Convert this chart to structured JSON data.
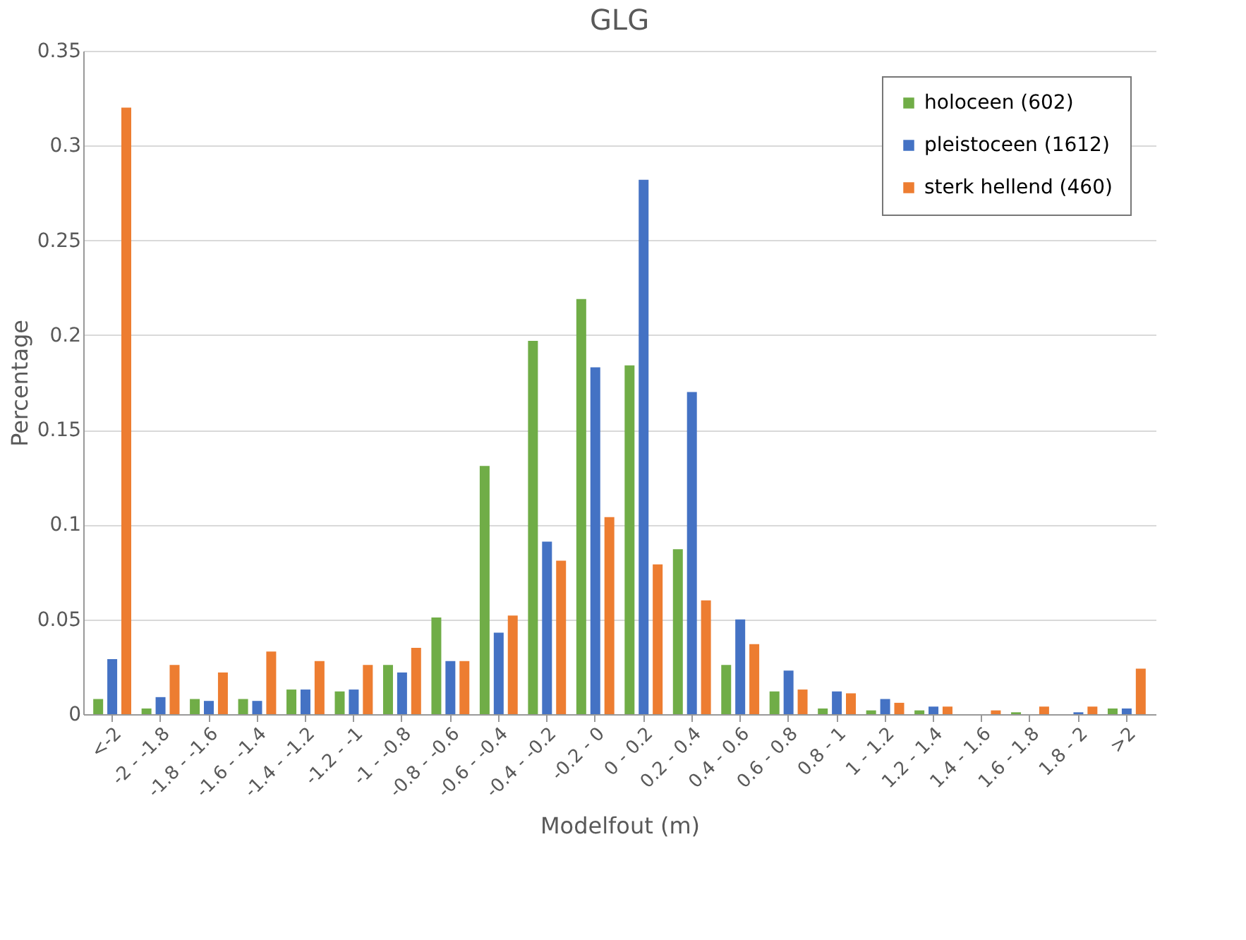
{
  "chart_data": {
    "type": "bar",
    "title": "GLG",
    "xlabel": "Modelfout (m)",
    "ylabel": "Percentage",
    "categories": [
      "<-2",
      "-2 - -1.8",
      "-1.8 - -1.6",
      "-1.6 - -1.4",
      "-1.4 - -1.2",
      "-1.2 - -1",
      "-1 - -0.8",
      "-0.8 - -0.6",
      "-0.6 - -0.4",
      "-0.4 - -0.2",
      "-0.2 - 0",
      "0 - 0.2",
      "0.2 - 0.4",
      "0.4 - 0.6",
      "0.6 - 0.8",
      "0.8 - 1",
      "1 - 1.2",
      "1.2 - 1.4",
      "1.4 - 1.6",
      "1.6 - 1.8",
      "1.8 - 2",
      ">2"
    ],
    "series": [
      {
        "name": "holoceen (602)",
        "color": "#70ad47",
        "values": [
          0.008,
          0.003,
          0.008,
          0.008,
          0.013,
          0.012,
          0.026,
          0.051,
          0.131,
          0.197,
          0.219,
          0.184,
          0.087,
          0.026,
          0.012,
          0.003,
          0.002,
          0.002,
          0,
          0.001,
          0,
          0.003
        ]
      },
      {
        "name": "pleistoceen (1612)",
        "color": "#4472c4",
        "values": [
          0.029,
          0.009,
          0.007,
          0.007,
          0.013,
          0.013,
          0.022,
          0.028,
          0.043,
          0.091,
          0.183,
          0.282,
          0.17,
          0.05,
          0.023,
          0.012,
          0.008,
          0.004,
          0,
          0,
          0.001,
          0.003
        ]
      },
      {
        "name": "sterk hellend (460)",
        "color": "#ed7d31",
        "values": [
          0.32,
          0.026,
          0.022,
          0.033,
          0.028,
          0.026,
          0.035,
          0.028,
          0.052,
          0.081,
          0.104,
          0.079,
          0.06,
          0.037,
          0.013,
          0.011,
          0.006,
          0.004,
          0.002,
          0.004,
          0.004,
          0.024
        ]
      }
    ],
    "ylim": [
      0,
      0.35
    ],
    "yticks": [
      0,
      0.05,
      0.1,
      0.15,
      0.2,
      0.25,
      0.3,
      0.35
    ],
    "grid": "y",
    "legend": "top right"
  }
}
